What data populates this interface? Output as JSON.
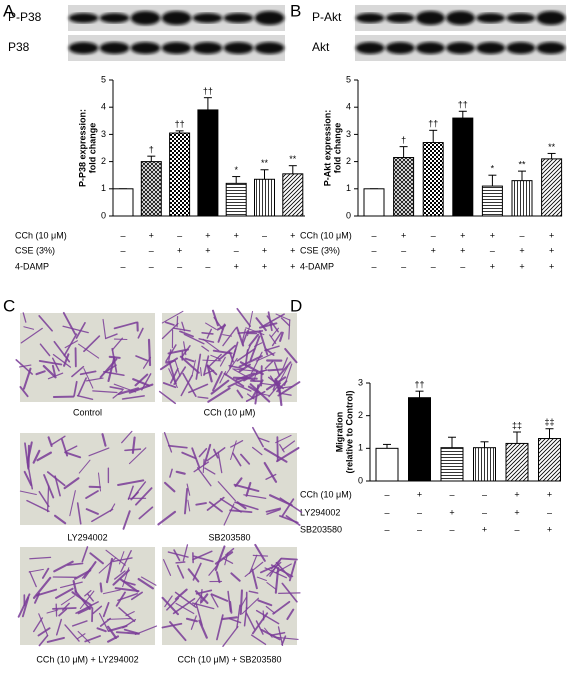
{
  "chart_data": [
    {
      "type": "bar",
      "panel": "A",
      "blots": [
        "P-P38",
        "P38"
      ],
      "ylabel": [
        "P-P38 expression:",
        "fold change"
      ],
      "values": [
        1,
        2.0,
        3.05,
        3.9,
        1.2,
        1.35,
        1.55
      ],
      "errors": [
        0,
        0.2,
        0.08,
        0.45,
        0.25,
        0.35,
        0.3
      ],
      "annotations": [
        null,
        "†",
        "††",
        "††",
        "*",
        "**",
        "**"
      ],
      "fills": [
        "white",
        "crosshatch",
        "checker",
        "black",
        "hlines",
        "vlines",
        "diagonal"
      ],
      "ylim": [
        0,
        5
      ],
      "yticks": [
        0,
        1,
        2,
        3,
        4,
        5
      ],
      "conditions": [
        {
          "label": "CCh (10 μM)",
          "signs": [
            "–",
            "+",
            "–",
            "+",
            "+",
            "–",
            "+"
          ]
        },
        {
          "label": "CSE (3%)",
          "signs": [
            "–",
            "–",
            "+",
            "+",
            "–",
            "+",
            "+"
          ]
        },
        {
          "label": "4-DAMP",
          "signs": [
            "–",
            "–",
            "–",
            "–",
            "+",
            "+",
            "+"
          ]
        }
      ]
    },
    {
      "type": "bar",
      "panel": "B",
      "blots": [
        "P-Akt",
        "Akt"
      ],
      "ylabel": [
        "P-Akt expression:",
        "fold change"
      ],
      "values": [
        1,
        2.15,
        2.7,
        3.6,
        1.1,
        1.3,
        2.1
      ],
      "errors": [
        0,
        0.4,
        0.45,
        0.25,
        0.4,
        0.35,
        0.2
      ],
      "annotations": [
        null,
        "†",
        "††",
        "††",
        "*",
        "**",
        "**"
      ],
      "fills": [
        "white",
        "crosshatch",
        "checker",
        "black",
        "hlines",
        "vlines",
        "diagonal"
      ],
      "ylim": [
        0,
        5
      ],
      "yticks": [
        0,
        1,
        2,
        3,
        4,
        5
      ],
      "conditions": [
        {
          "label": "CCh (10 μM)",
          "signs": [
            "–",
            "+",
            "–",
            "+",
            "+",
            "–",
            "+"
          ]
        },
        {
          "label": "CSE (3%)",
          "signs": [
            "–",
            "–",
            "+",
            "+",
            "–",
            "+",
            "+"
          ]
        },
        {
          "label": "4-DAMP",
          "signs": [
            "–",
            "–",
            "–",
            "–",
            "+",
            "+",
            "+"
          ]
        }
      ]
    },
    {
      "type": "bar",
      "panel": "D",
      "ylabel": [
        "Migration",
        "(relative to Control)"
      ],
      "values": [
        1,
        2.55,
        1.02,
        1.02,
        1.15,
        1.3
      ],
      "errors": [
        0.12,
        0.2,
        0.32,
        0.18,
        0.35,
        0.3
      ],
      "annotations": [
        null,
        "††",
        null,
        null,
        "‡‡",
        "‡‡"
      ],
      "fills": [
        "white",
        "black",
        "hlines",
        "vlines",
        "diagonal",
        "diagonal"
      ],
      "ylim": [
        0,
        3
      ],
      "yticks": [
        0,
        1,
        2,
        3
      ],
      "conditions": [
        {
          "label": "CCh (10 μM)",
          "signs": [
            "–",
            "+",
            "–",
            "–",
            "+",
            "+"
          ]
        },
        {
          "label": "LY294002",
          "signs": [
            "–",
            "–",
            "+",
            "–",
            "+",
            "–"
          ]
        },
        {
          "label": "SB203580",
          "signs": [
            "–",
            "–",
            "–",
            "+",
            "–",
            "+"
          ]
        }
      ]
    }
  ],
  "micrographs": {
    "panel": "C",
    "captions": [
      "Control",
      "CCh (10 μM)",
      "LY294002",
      "SB203580",
      "CCh (10 μM) + LY294002",
      "CCh (10 μM) + SB203580"
    ]
  }
}
